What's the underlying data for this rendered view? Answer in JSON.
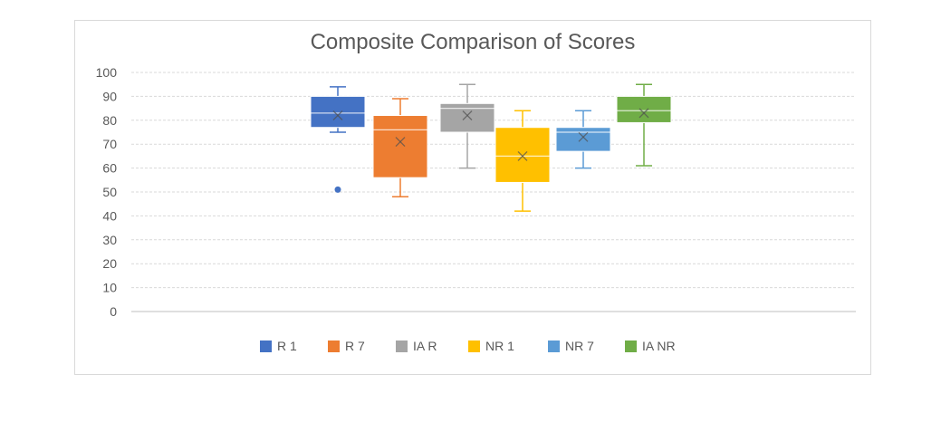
{
  "chart_data": {
    "type": "box",
    "title": "Composite Comparison of Scores",
    "xlabel": "",
    "ylabel": "",
    "ylim": [
      0,
      100
    ],
    "yticks": [
      0,
      10,
      20,
      30,
      40,
      50,
      60,
      70,
      80,
      90,
      100
    ],
    "grid": true,
    "legend_position": "bottom",
    "series": [
      {
        "name": "R 1",
        "color": "#4472c4",
        "min": 75,
        "q1": 77,
        "median": 83,
        "q3": 90,
        "max": 94,
        "mean": 82,
        "outliers": [
          51
        ]
      },
      {
        "name": "R 7",
        "color": "#ed7d31",
        "min": 48,
        "q1": 56,
        "median": 76,
        "q3": 82,
        "max": 89,
        "mean": 71,
        "outliers": []
      },
      {
        "name": "IA R",
        "color": "#a5a5a5",
        "min": 60,
        "q1": 75,
        "median": 85,
        "q3": 87,
        "max": 95,
        "mean": 82,
        "outliers": []
      },
      {
        "name": "NR 1",
        "color": "#ffc000",
        "min": 42,
        "q1": 54,
        "median": 65,
        "q3": 77,
        "max": 84,
        "mean": 65,
        "outliers": []
      },
      {
        "name": "NR 7",
        "color": "#5b9bd5",
        "min": 60,
        "q1": 67,
        "median": 75,
        "q3": 77,
        "max": 84,
        "mean": 73,
        "outliers": []
      },
      {
        "name": "IA NR",
        "color": "#70ad47",
        "min": 61,
        "q1": 79,
        "median": 84,
        "q3": 90,
        "max": 95,
        "mean": 83,
        "outliers": []
      }
    ]
  }
}
